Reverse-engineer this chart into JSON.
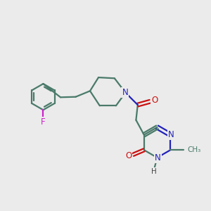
{
  "bg_color": "#ebebeb",
  "bond_color": "#4a7a6a",
  "n_color": "#2222bb",
  "o_color": "#cc1111",
  "f_color": "#cc22cc",
  "lw": 1.6,
  "fs": 8.0,
  "fig_w": 3.0,
  "fig_h": 3.0,
  "dpi": 100,
  "xlim": [
    0,
    10
  ],
  "ylim": [
    0,
    10
  ]
}
